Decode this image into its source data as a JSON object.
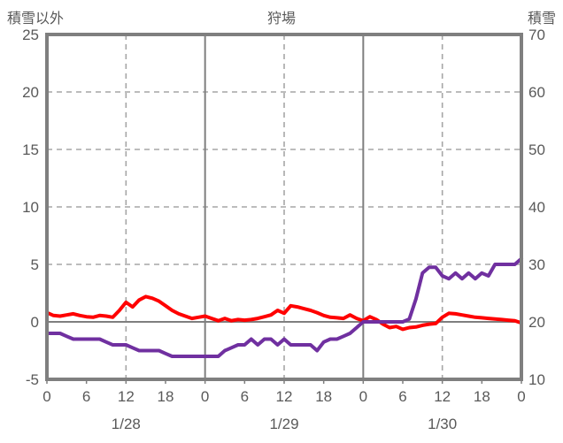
{
  "header": {
    "left_axis_title": "積雪以外",
    "chart_title": "狩場",
    "right_axis_title": "積雪"
  },
  "chart_data": {
    "type": "line",
    "title": "狩場",
    "grid": "dashed horizontal at left-axis 5,10,15,20; dashed vertical at 12:00 each day; solid vertical at day boundaries; solid zero line",
    "legend_position": "none",
    "left_axis": {
      "label": "積雪以外",
      "min": -5,
      "max": 25,
      "ticks": [
        25,
        20,
        15,
        10,
        5,
        0,
        -5
      ]
    },
    "right_axis": {
      "label": "積雪",
      "min": 10,
      "max": 70,
      "ticks": [
        70,
        60,
        50,
        40,
        30,
        20,
        10
      ]
    },
    "x_axis": {
      "hours_total": 72,
      "tick_interval_hours": 6,
      "hour_tick_labels": [
        "0",
        "6",
        "12",
        "18",
        "0",
        "6",
        "12",
        "18",
        "0",
        "6",
        "12",
        "18",
        "0"
      ],
      "date_labels": [
        "1/28",
        "1/29",
        "1/30"
      ],
      "date_label_center_hours": [
        12,
        36,
        60
      ]
    },
    "series": [
      {
        "name": "積雪以外",
        "axis": "left",
        "color": "#ff0000",
        "x_start_hour": 0,
        "x_step_hours": 1,
        "values": [
          0.8,
          0.55,
          0.5,
          0.6,
          0.7,
          0.55,
          0.45,
          0.4,
          0.55,
          0.5,
          0.4,
          1.0,
          1.7,
          1.3,
          1.9,
          2.2,
          2.05,
          1.8,
          1.4,
          1.0,
          0.7,
          0.5,
          0.3,
          0.4,
          0.5,
          0.3,
          0.1,
          0.3,
          0.1,
          0.2,
          0.15,
          0.2,
          0.3,
          0.45,
          0.6,
          1.0,
          0.75,
          1.4,
          1.3,
          1.15,
          1.0,
          0.8,
          0.55,
          0.4,
          0.35,
          0.3,
          0.6,
          0.3,
          0.1,
          0.45,
          0.2,
          -0.2,
          -0.5,
          -0.4,
          -0.65,
          -0.5,
          -0.45,
          -0.3,
          -0.2,
          -0.15,
          0.4,
          0.75,
          0.7,
          0.6,
          0.5,
          0.4,
          0.35,
          0.3,
          0.25,
          0.2,
          0.15,
          0.1,
          -0.1
        ]
      },
      {
        "name": "積雪",
        "axis": "right",
        "color": "#7030a0",
        "x_start_hour": 0,
        "x_step_hours": 1,
        "values": [
          18,
          18,
          18,
          17.5,
          17,
          17,
          17,
          17,
          17,
          16.5,
          16,
          16,
          16,
          15.5,
          15,
          15,
          15,
          15,
          14.5,
          14,
          14,
          14,
          14,
          14,
          14,
          14,
          14,
          15,
          15.5,
          16,
          16,
          17,
          16,
          17,
          17,
          16,
          17,
          16,
          16,
          16,
          16,
          15,
          16.5,
          17,
          17,
          17.5,
          18,
          19,
          20,
          20,
          20,
          20,
          20,
          20,
          20,
          20.5,
          24,
          28.5,
          29.5,
          29.5,
          28,
          27.5,
          28.5,
          27.5,
          28.5,
          27.5,
          28.5,
          28,
          30,
          30,
          30,
          30,
          31
        ]
      }
    ],
    "colors": {
      "series_left": "#ff0000",
      "series_right": "#7030a0",
      "plot_border": "#7f7f7f",
      "zero_line": "#7f7f7f",
      "day_boundary_line": "#7f7f7f",
      "dashed_grid": "#a6a6a6",
      "axis_text": "#595959",
      "background": "#ffffff"
    }
  }
}
